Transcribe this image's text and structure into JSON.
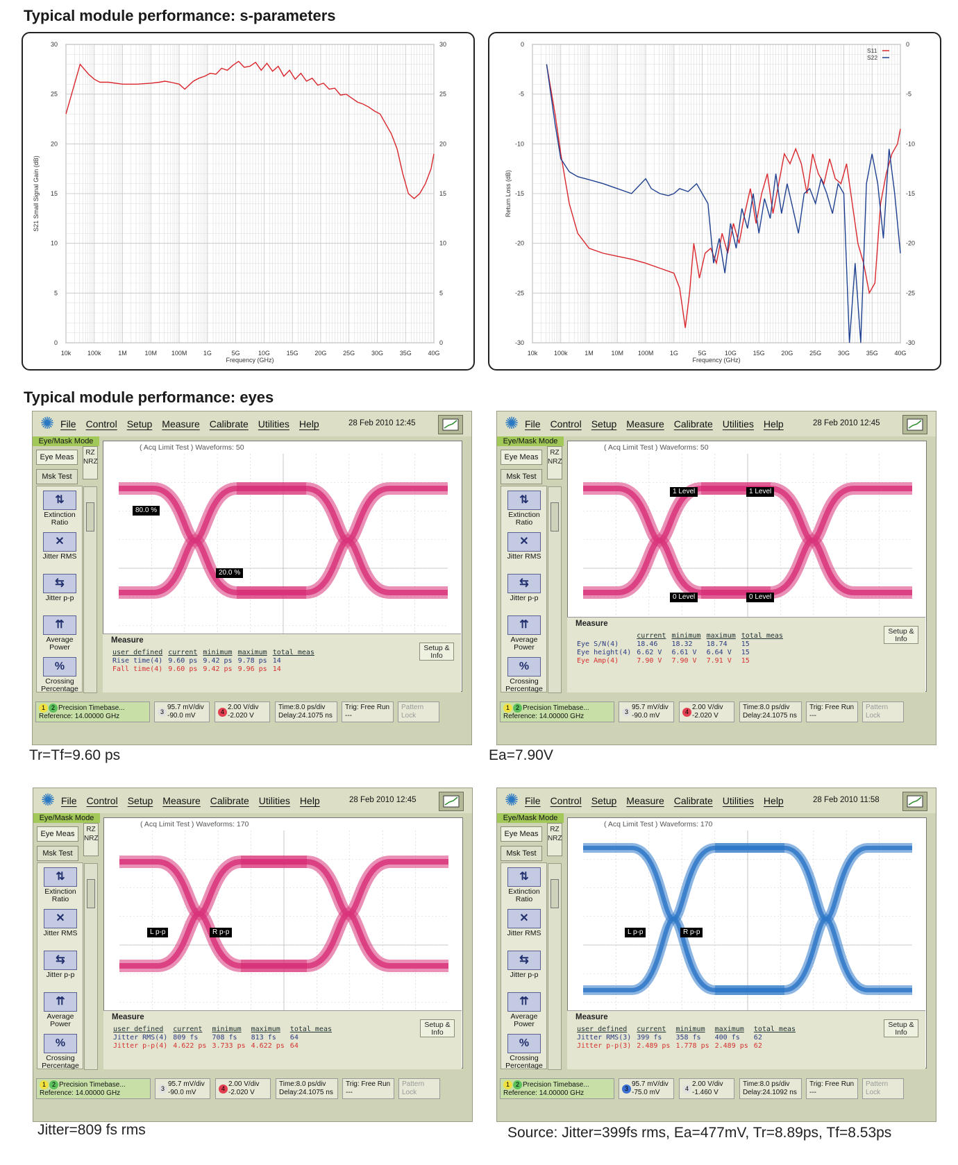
{
  "headers": {
    "sparams": "Typical module performance: s-parameters",
    "eyes": "Typical module performance: eyes"
  },
  "chart_data": [
    {
      "type": "line",
      "title": "",
      "xlabel": "Frequency (GHz)",
      "ylabel": "S21 Small Signal Gain (dB)",
      "ylim": [
        0,
        30
      ],
      "x_tick_labels": [
        "10k",
        "100k",
        "1M",
        "10M",
        "100M",
        "1G",
        "5G",
        "10G",
        "15G",
        "20G",
        "25G",
        "30G",
        "35G",
        "40G"
      ],
      "y_tick_labels": [
        "0",
        "5",
        "10",
        "15",
        "20",
        "25",
        "30"
      ],
      "grid": true,
      "series": [
        {
          "color": "#d9262c",
          "x": [
            0,
            0.5,
            0.8,
            1,
            1.2,
            1.5,
            2,
            2.5,
            3,
            3.3,
            3.5,
            3.7,
            4,
            4.2,
            4.5,
            4.7,
            4.9,
            5.1,
            5.3,
            5.5,
            5.7,
            5.9,
            6.1,
            6.3,
            6.5,
            6.7,
            6.9,
            7.1,
            7.3,
            7.5,
            7.7,
            7.9,
            8.1,
            8.3,
            8.5,
            8.7,
            8.9,
            9.1,
            9.3,
            9.5,
            9.7,
            9.9,
            10.1,
            10.3,
            10.5,
            10.7,
            10.9,
            11.1,
            11.3,
            11.5,
            11.7,
            11.9,
            12.1,
            12.3,
            12.5,
            12.7,
            12.9,
            13
          ],
          "values": [
            23,
            28,
            27,
            26.5,
            26.2,
            26.2,
            26,
            26,
            26.1,
            26.2,
            26.3,
            26.2,
            26,
            25.5,
            26.3,
            26.6,
            26.8,
            27.1,
            27,
            27.6,
            27.4,
            27.9,
            28.3,
            27.7,
            27.8,
            28.2,
            27.4,
            28.1,
            27.3,
            27.8,
            26.8,
            27.4,
            26.5,
            27.1,
            26.3,
            26.6,
            25.9,
            26.1,
            25.5,
            25.6,
            24.9,
            25,
            24.6,
            24.2,
            24,
            23.7,
            23.3,
            23,
            22,
            21,
            19.5,
            17,
            15,
            14.5,
            15,
            16,
            17.5,
            19
          ]
        }
      ]
    },
    {
      "type": "line",
      "title": "",
      "xlabel": "Frequency (GHz)",
      "ylabel": "Return Loss (dB)",
      "ylim": [
        -30,
        0
      ],
      "x_tick_labels": [
        "10k",
        "100k",
        "1M",
        "10M",
        "100M",
        "1G",
        "5G",
        "10G",
        "15G",
        "20G",
        "25G",
        "30G",
        "35G",
        "40G"
      ],
      "y_tick_labels": [
        "0",
        "-5",
        "-10",
        "-15",
        "-20",
        "-25",
        "-30"
      ],
      "grid": true,
      "legend": "top-right",
      "series": [
        {
          "name": "S11",
          "color": "#d9262c",
          "x": [
            0.5,
            0.8,
            1,
            1.3,
            1.6,
            2,
            2.5,
            3,
            3.5,
            4,
            4.5,
            5,
            5.2,
            5.4,
            5.55,
            5.7,
            5.9,
            6.1,
            6.3,
            6.5,
            6.7,
            6.9,
            7.1,
            7.3,
            7.5,
            7.7,
            7.9,
            8.1,
            8.3,
            8.5,
            8.7,
            8.9,
            9.1,
            9.3,
            9.5,
            9.7,
            9.9,
            10.1,
            10.3,
            10.5,
            10.7,
            10.9,
            11.1,
            11.3,
            11.5,
            11.7,
            11.9,
            12.1,
            12.3,
            12.5,
            12.7,
            12.9,
            13
          ],
          "values": [
            -2,
            -7,
            -11,
            -16,
            -19,
            -20.5,
            -21,
            -21.3,
            -21.6,
            -22,
            -22.5,
            -23,
            -24.5,
            -28.5,
            -25,
            -20,
            -23.5,
            -21,
            -20.5,
            -22,
            -19,
            -21,
            -18,
            -20,
            -17,
            -14.5,
            -18,
            -15,
            -13,
            -17,
            -14,
            -11,
            -12,
            -10.5,
            -12,
            -15,
            -11,
            -13,
            -14,
            -11.5,
            -13.5,
            -14,
            -12,
            -16,
            -20,
            -22,
            -25,
            -24,
            -16,
            -13,
            -11,
            -10,
            -8.5
          ]
        },
        {
          "name": "S22",
          "color": "#1e3f8f",
          "x": [
            0.5,
            0.8,
            1,
            1.3,
            1.6,
            2,
            2.5,
            3,
            3.5,
            4,
            4.2,
            4.5,
            4.8,
            5,
            5.2,
            5.5,
            5.8,
            6,
            6.2,
            6.4,
            6.6,
            6.8,
            7,
            7.2,
            7.4,
            7.6,
            7.8,
            8,
            8.2,
            8.4,
            8.6,
            8.8,
            9,
            9.2,
            9.4,
            9.6,
            9.8,
            10,
            10.2,
            10.4,
            10.6,
            10.8,
            11,
            11.2,
            11.4,
            11.6,
            11.8,
            12,
            12.2,
            12.4,
            12.6,
            12.8,
            13
          ],
          "values": [
            -2,
            -8,
            -11.5,
            -12.8,
            -13.3,
            -13.6,
            -14,
            -14.5,
            -15,
            -13.5,
            -14.5,
            -15,
            -15.2,
            -15,
            -14.5,
            -14.8,
            -14,
            -15,
            -16,
            -22,
            -19.5,
            -23,
            -18,
            -20.5,
            -16.5,
            -18.5,
            -15,
            -19,
            -15.5,
            -17.5,
            -13,
            -17,
            -14,
            -16.5,
            -19,
            -15,
            -14.5,
            -16,
            -13.5,
            -15,
            -17,
            -14,
            -15,
            -30,
            -22,
            -30,
            -14,
            -11,
            -14,
            -19.5,
            -10.5,
            -15,
            -21
          ]
        }
      ]
    }
  ],
  "scopes": [
    {
      "menu": [
        "File",
        "Control",
        "Setup",
        "Measure",
        "Calibrate",
        "Utilities",
        "Help"
      ],
      "datetime": "28 Feb 2010   12:45",
      "mode": "Eye/Mask Mode",
      "eye_meas": "Eye Meas",
      "msk_test": "Msk Test",
      "rz": "RZ",
      "nrz": "NRZ",
      "tools": [
        "Extinction Ratio",
        "Jitter RMS",
        "Jitter p-p",
        "Average Power",
        "Crossing Percentage"
      ],
      "screen_label": "( Acq Limit Test )  Waveforms: 50",
      "markers": [
        "80.0 %",
        "20.0 %"
      ],
      "measure_title": "Measure",
      "table_header": [
        "user defined",
        "current",
        "minimum",
        "maximum",
        "total meas"
      ],
      "rows": [
        [
          "Rise time(4)",
          "9.60 ps",
          "9.42 ps",
          "9.78 ps",
          "14"
        ],
        [
          "Fall time(4)",
          "9.60 ps",
          "9.42 ps",
          "9.96 ps",
          "14"
        ]
      ],
      "setup_info": "Setup & Info",
      "status": {
        "timebase": "Precision Timebase...",
        "reference": "Reference: 14.00000 GHz",
        "ch3_scale": "95.7 mV/div",
        "ch3_offset": "-90.0 mV",
        "ch4_scale": "2.00 V/div",
        "ch4_offset": "-2.020 V",
        "time": "Time:8.0 ps/div",
        "delay": "Delay:24.1075 ns",
        "trig": "Trig: Free Run",
        "trig2": "---",
        "pattern": "Pattern Lock"
      },
      "eye_color": "#d8347a",
      "caption": "Tr=Tf=9.60 ps"
    },
    {
      "menu": [
        "File",
        "Control",
        "Setup",
        "Measure",
        "Calibrate",
        "Utilities",
        "Help"
      ],
      "datetime": "28 Feb 2010   12:45",
      "mode": "Eye/Mask Mode",
      "eye_meas": "Eye Meas",
      "msk_test": "Msk Test",
      "rz": "RZ",
      "nrz": "NRZ",
      "tools": [
        "Extinction Ratio",
        "Jitter RMS",
        "Jitter p-p",
        "Average Power",
        "Crossing Percentage"
      ],
      "screen_label": "( Acq Limit Test )  Waveforms: 50",
      "markers": [
        "1 Level",
        "1 Level",
        "0 Level",
        "0 Level"
      ],
      "measure_title": "Measure",
      "table_header": [
        "",
        "current",
        "minimum",
        "maximum",
        "total meas"
      ],
      "rows": [
        [
          "Eye S/N(4)",
          "18.46",
          "18.32",
          "18.74",
          "15"
        ],
        [
          "Eye height(4)",
          "6.62 V",
          "6.61 V",
          "6.64 V",
          "15"
        ],
        [
          "Eye Amp(4)",
          "7.90 V",
          "7.90 V",
          "7.91 V",
          "15"
        ]
      ],
      "setup_info": "Setup & Info",
      "status": {
        "timebase": "Precision Timebase...",
        "reference": "Reference: 14.00000 GHz",
        "ch3_scale": "95.7 mV/div",
        "ch3_offset": "-90.0 mV",
        "ch4_scale": "2.00 V/div",
        "ch4_offset": "-2.020 V",
        "time": "Time:8.0 ps/div",
        "delay": "Delay:24.1075 ns",
        "trig": "Trig: Free Run",
        "trig2": "---",
        "pattern": "Pattern Lock"
      },
      "eye_color": "#d8347a",
      "caption": "Ea=7.90V"
    },
    {
      "menu": [
        "File",
        "Control",
        "Setup",
        "Measure",
        "Calibrate",
        "Utilities",
        "Help"
      ],
      "datetime": "28 Feb 2010   12:45",
      "mode": "Eye/Mask Mode",
      "eye_meas": "Eye Meas",
      "msk_test": "Msk Test",
      "rz": "RZ",
      "nrz": "NRZ",
      "tools": [
        "Extinction Ratio",
        "Jitter RMS",
        "Jitter p-p",
        "Average Power",
        "Crossing Percentage"
      ],
      "screen_label": "( Acq Limit Test )  Waveforms: 170",
      "markers": [
        "L p-p",
        "R p-p"
      ],
      "measure_title": "Measure",
      "table_header": [
        "user defined",
        "current",
        "minimum",
        "maximum",
        "total meas"
      ],
      "rows": [
        [
          "Jitter RMS(4)",
          "809 fs",
          "708 fs",
          "813 fs",
          "64"
        ],
        [
          "Jitter p-p(4)",
          "4.622 ps",
          "3.733 ps",
          "4.622 ps",
          "64"
        ]
      ],
      "setup_info": "Setup & Info",
      "status": {
        "timebase": "Precision Timebase...",
        "reference": "Reference: 14.00000 GHz",
        "ch3_scale": "95.7 mV/div",
        "ch3_offset": "-90.0 mV",
        "ch4_scale": "2.00 V/div",
        "ch4_offset": "-2.020 V",
        "time": "Time:8.0 ps/div",
        "delay": "Delay:24.1075 ns",
        "trig": "Trig: Free Run",
        "trig2": "---",
        "pattern": "Pattern Lock"
      },
      "eye_color": "#d8347a",
      "caption": "Jitter=809 fs rms"
    },
    {
      "menu": [
        "File",
        "Control",
        "Setup",
        "Measure",
        "Calibrate",
        "Utilities",
        "Help"
      ],
      "datetime": "28 Feb 2010   11:58",
      "mode": "Eye/Mask Mode",
      "eye_meas": "Eye Meas",
      "msk_test": "Msk Test",
      "rz": "RZ",
      "nrz": "NRZ",
      "tools": [
        "Extinction Ratio",
        "Jitter RMS",
        "Jitter p-p",
        "Average Power",
        "Crossing Percentage"
      ],
      "screen_label": "( Acq Limit Test )  Waveforms: 170",
      "markers": [
        "L p-p",
        "R p-p"
      ],
      "measure_title": "Measure",
      "table_header": [
        "user defined",
        "current",
        "minimum",
        "maximum",
        "total meas"
      ],
      "rows": [
        [
          "Jitter RMS(3)",
          "399 fs",
          "358 fs",
          "400 fs",
          "62"
        ],
        [
          "Jitter p-p(3)",
          "2.489 ps",
          "1.778 ps",
          "2.489 ps",
          "62"
        ]
      ],
      "setup_info": "Setup & Info",
      "status": {
        "timebase": "Precision Timebase...",
        "reference": "Reference: 14.00000 GHz",
        "ch3_scale": "95.7 mV/div",
        "ch3_offset": "-75.0 mV",
        "ch4_scale": "2.00 V/div",
        "ch4_offset": "-1.460 V",
        "time": "Time:8.0 ps/div",
        "delay": "Delay:24.1092 ns",
        "trig": "Trig: Free Run",
        "trig2": "---",
        "pattern": "Pattern Lock"
      },
      "eye_color": "#2f78c8",
      "caption": "Source: Jitter=399fs rms, Ea=477mV, Tr=8.89ps, Tf=8.53ps"
    }
  ]
}
